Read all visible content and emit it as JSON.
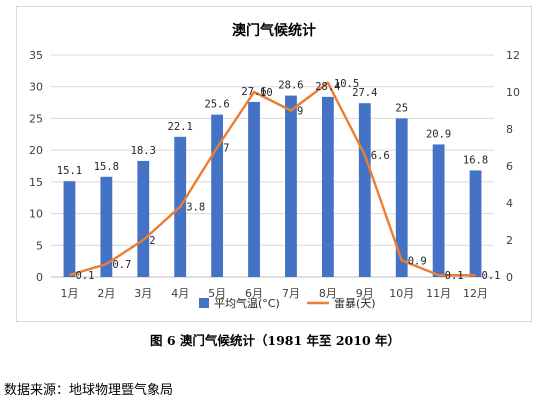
{
  "chart_data": {
    "type": "bar+line",
    "title": "澳门气候统计",
    "categories": [
      "1月",
      "2月",
      "3月",
      "4月",
      "5月",
      "6月",
      "7月",
      "8月",
      "9月",
      "10月",
      "11月",
      "12月"
    ],
    "series": [
      {
        "name": "平均气温(°C)",
        "type": "bar",
        "axis": "left",
        "color": "#4472C4",
        "values": [
          15.1,
          15.8,
          18.3,
          22.1,
          25.6,
          27.6,
          28.6,
          28.4,
          27.4,
          25,
          20.9,
          16.8
        ],
        "labels": [
          "15.1",
          "15.8",
          "18.3",
          "22.1",
          "25.6",
          "27.6",
          "28.6",
          "28.4",
          "27.4",
          "25",
          "20.9",
          "16.8"
        ]
      },
      {
        "name": "雷暴(天)",
        "type": "line",
        "axis": "right",
        "color": "#ED7D31",
        "values": [
          0.1,
          0.7,
          2,
          3.8,
          7,
          10,
          9,
          10.5,
          6.6,
          0.9,
          0.1,
          0.1
        ],
        "labels": [
          "0.1",
          "0.7",
          "2",
          "3.8",
          "7",
          "10",
          "9",
          "10.5",
          "6.6",
          "0.9",
          "0.1",
          "0.1"
        ]
      }
    ],
    "y_left": {
      "ylim": [
        0,
        35
      ],
      "ticks": [
        0,
        5,
        10,
        15,
        20,
        25,
        30,
        35
      ]
    },
    "y_right": {
      "ylim": [
        0,
        12
      ],
      "ticks": [
        0,
        2,
        4,
        6,
        8,
        10,
        12
      ]
    },
    "grid": true,
    "legend_position": "bottom"
  },
  "caption": "图 6 澳门气候统计（1981 年至 2010 年）",
  "source": "数据来源：地球物理暨气象局"
}
